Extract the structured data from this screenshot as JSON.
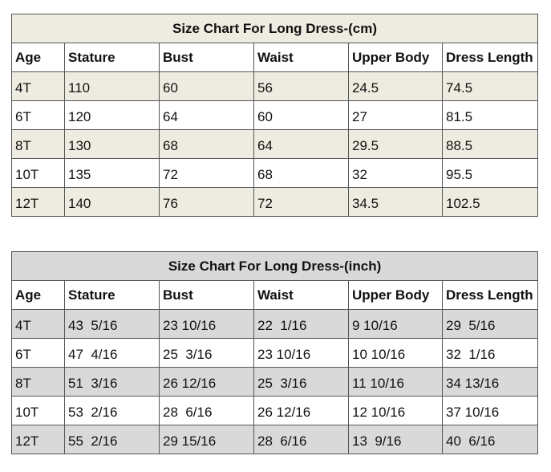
{
  "tables": [
    {
      "title": "Size Chart For Long Dress-(cm)",
      "header": [
        "Age",
        "Stature",
        "Bust",
        "Waist",
        "Upper Body",
        "Dress Length"
      ],
      "rows": [
        [
          "4T",
          "110",
          "60",
          "56",
          "24.5",
          "74.5"
        ],
        [
          "6T",
          "120",
          "64",
          "60",
          "27",
          "81.5"
        ],
        [
          "8T",
          "130",
          "68",
          "64",
          "29.5",
          "88.5"
        ],
        [
          "10T",
          "135",
          "72",
          "68",
          "32",
          "95.5"
        ],
        [
          "12T",
          "140",
          "76",
          "72",
          "34.5",
          "102.5"
        ]
      ]
    },
    {
      "title": "Size Chart For Long Dress-(inch)",
      "header": [
        "Age",
        "Stature",
        "Bust",
        "Waist",
        "Upper Body",
        "Dress Length"
      ],
      "rows": [
        [
          "4T",
          "43  5/16",
          "23 10/16",
          "22  1/16",
          "9 10/16",
          "29  5/16"
        ],
        [
          "6T",
          "47  4/16",
          "25  3/16",
          "23 10/16",
          "10 10/16",
          "32  1/16"
        ],
        [
          "8T",
          "51  3/16",
          "26 12/16",
          "25  3/16",
          "11 10/16",
          "34 13/16"
        ],
        [
          "10T",
          "53  2/16",
          "28  6/16",
          "26 12/16",
          "12 10/16",
          "37 10/16"
        ],
        [
          "12T",
          "55  2/16",
          "29 15/16",
          "28  6/16",
          "13  9/16",
          "40  6/16"
        ]
      ]
    }
  ]
}
